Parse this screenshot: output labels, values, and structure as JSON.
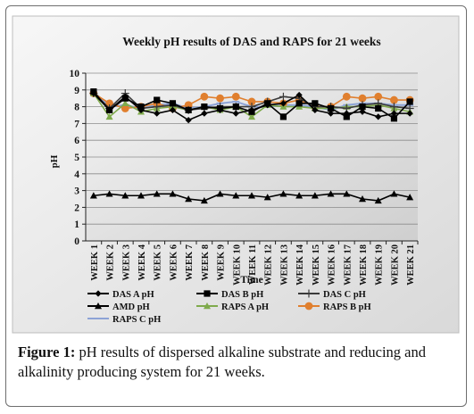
{
  "chart_data": {
    "type": "line",
    "title": "Weekly pH results of DAS and RAPS for 21 weeks",
    "xlabel": "Time",
    "ylabel": "pH",
    "ylim": [
      0,
      10
    ],
    "yticks": [
      "0",
      "1",
      "2",
      "3",
      "4",
      "5",
      "6",
      "7",
      "8",
      "9",
      "10"
    ],
    "categories": [
      "WEEK 1",
      "WEEK 2",
      "WEEK 3",
      "WEEK 4",
      "WEEK 5",
      "WEEK 6",
      "WEEK 7",
      "WEEK 8",
      "WEEK 9",
      "WEEK 10",
      "WEEK 11",
      "WEEK 12",
      "WEEK 13",
      "WEEK 14",
      "WEEK 15",
      "WEEK 16",
      "WEEK 17",
      "WEEK 18",
      "WEEK 19",
      "WEEK 20",
      "WEEK 21"
    ],
    "grid": "horizontal",
    "legend_position": "bottom",
    "series": [
      {
        "name": "DAS A pH",
        "color": "#000000",
        "marker": "diamond",
        "values": [
          8.8,
          7.8,
          8.6,
          7.8,
          7.6,
          7.8,
          7.2,
          7.6,
          7.8,
          7.6,
          7.8,
          8.1,
          8.2,
          8.7,
          7.8,
          7.6,
          7.6,
          7.7,
          7.4,
          7.6,
          7.6
        ]
      },
      {
        "name": "DAS B pH",
        "color": "#000000",
        "marker": "square",
        "values": [
          8.9,
          7.8,
          8.5,
          8.0,
          8.4,
          8.2,
          7.8,
          8.0,
          7.9,
          8.0,
          7.7,
          8.2,
          7.4,
          8.2,
          8.2,
          7.9,
          7.4,
          8.0,
          7.9,
          7.3,
          8.3
        ]
      },
      {
        "name": "DAS C pH",
        "color": "#3a3a3a",
        "marker": "plus",
        "values": [
          8.8,
          7.9,
          8.8,
          7.9,
          8.0,
          8.1,
          7.8,
          7.9,
          8.0,
          8.0,
          8.0,
          8.3,
          8.6,
          8.5,
          8.0,
          8.0,
          7.9,
          8.1,
          8.2,
          8.0,
          7.9
        ]
      },
      {
        "name": "AMD pH",
        "color": "#000000",
        "marker": "triangle",
        "values": [
          2.7,
          2.8,
          2.7,
          2.7,
          2.8,
          2.8,
          2.5,
          2.4,
          2.8,
          2.7,
          2.7,
          2.6,
          2.8,
          2.7,
          2.7,
          2.8,
          2.8,
          2.5,
          2.4,
          2.8,
          2.6
        ]
      },
      {
        "name": "RAPS A pH",
        "color": "#7faa4c",
        "marker": "triangle",
        "values": [
          8.8,
          7.4,
          8.2,
          7.7,
          7.9,
          8.0,
          7.8,
          8.0,
          7.8,
          8.0,
          7.4,
          8.1,
          8.0,
          8.0,
          7.9,
          7.9,
          8.0,
          8.0,
          8.1,
          7.9,
          7.7
        ]
      },
      {
        "name": "RAPS B pH",
        "color": "#e07f2e",
        "marker": "circle",
        "values": [
          8.8,
          8.2,
          7.9,
          8.0,
          8.2,
          7.9,
          8.1,
          8.6,
          8.5,
          8.6,
          8.3,
          8.3,
          8.2,
          8.4,
          8.0,
          8.0,
          8.6,
          8.5,
          8.6,
          8.4,
          8.4
        ]
      },
      {
        "name": "RAPS C pH",
        "color": "#8da3d6",
        "marker": "line",
        "values": [
          8.9,
          8.0,
          8.1,
          7.9,
          8.1,
          8.2,
          7.9,
          8.0,
          8.2,
          8.3,
          8.0,
          8.0,
          8.1,
          8.1,
          8.0,
          7.8,
          8.1,
          8.2,
          8.2,
          8.1,
          8.1
        ]
      }
    ]
  },
  "caption": {
    "label": "Figure 1:",
    "text": " pH results of dispersed alkaline substrate and reducing and alkalinity producing system for 21 weeks."
  }
}
